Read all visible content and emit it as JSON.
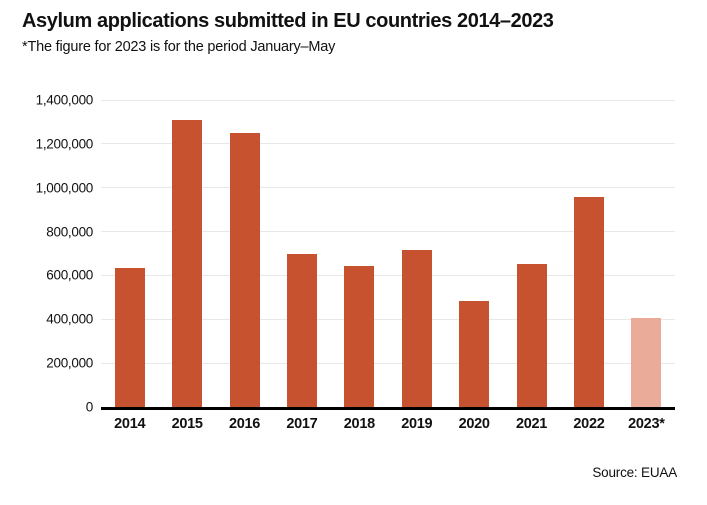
{
  "header": {
    "title": "Asylum applications submitted in EU countries 2014–2023",
    "subtitle": "*The figure for 2023 is for the period January–May"
  },
  "source": "Source: EUAA",
  "colors": {
    "bar": "#c7522f",
    "bar_highlight": "#ebab99",
    "gridline": "#e8e8e8",
    "axis": "#000000",
    "text": "#111111"
  },
  "chart_data": {
    "type": "bar",
    "title": "Asylum applications submitted in EU countries 2014–2023",
    "subtitle": "*The figure for 2023 is for the period January–May",
    "categories": [
      "2014",
      "2015",
      "2016",
      "2017",
      "2018",
      "2019",
      "2020",
      "2021",
      "2022",
      "2023*"
    ],
    "values": [
      635000,
      1310000,
      1250000,
      700000,
      645000,
      715000,
      485000,
      650000,
      960000,
      405000
    ],
    "highlight_index": 9,
    "xlabel": "",
    "ylabel": "",
    "ylim": [
      0,
      1400000
    ],
    "ytick_values": [
      0,
      200000,
      400000,
      600000,
      800000,
      1000000,
      1200000,
      1400000
    ],
    "ytick_labels": [
      "0",
      "200,000",
      "400,000",
      "600,000",
      "800,000",
      "1,000,000",
      "1,200,000",
      "1,400,000"
    ],
    "grid": true,
    "legend": "none",
    "source": "Source: EUAA"
  }
}
